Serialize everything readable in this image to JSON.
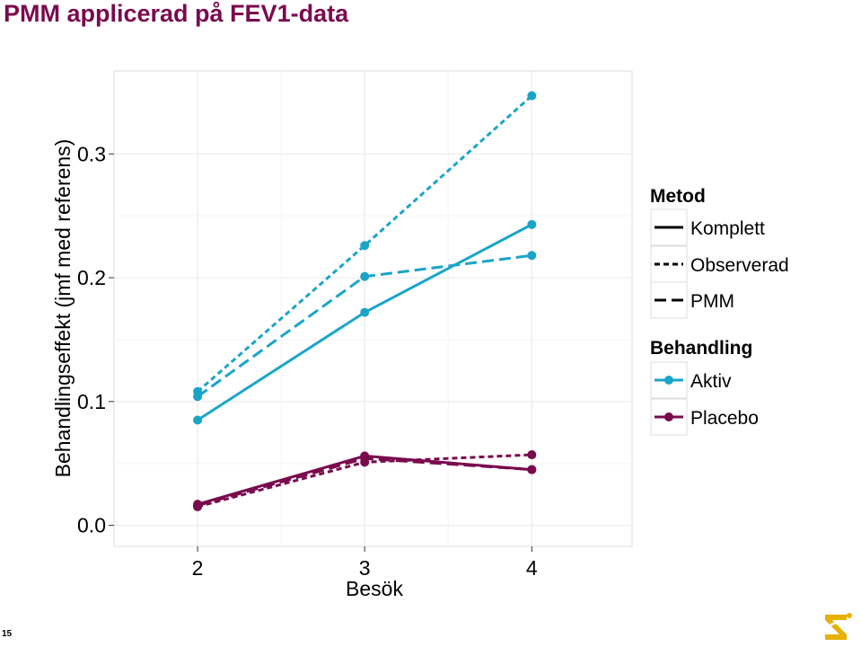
{
  "slide": {
    "title": "PMM applicerad på FEV1-data",
    "page_number": "15",
    "logo_icon": "company-logo-icon"
  },
  "colors": {
    "aktiv": "#1aa5c8",
    "placebo": "#7a0a4e",
    "panel_bg": "#ffffff",
    "grid": "#ebebeb",
    "title": "#7a0a4e"
  },
  "chart_data": {
    "type": "line",
    "xlabel": "Besök",
    "ylabel": "Behandlingseffekt (jmf med referens)",
    "x": [
      2,
      3,
      4
    ],
    "x_ticks": [
      "2",
      "3",
      "4"
    ],
    "y_ticks": [
      "0.0",
      "0.1",
      "0.2",
      "0.3"
    ],
    "y_tick_values": [
      0.0,
      0.1,
      0.2,
      0.3
    ],
    "xlim": [
      1.5,
      4.6
    ],
    "ylim": [
      -0.017,
      0.367
    ],
    "grid": true,
    "legend_position": "right",
    "legend": {
      "metod": {
        "title": "Metod",
        "items": [
          {
            "label": "Komplett",
            "dash": "solid"
          },
          {
            "label": "Observerad",
            "dash": "dotted"
          },
          {
            "label": "PMM",
            "dash": "dashed"
          }
        ]
      },
      "behandling": {
        "title": "Behandling",
        "items": [
          {
            "label": "Aktiv",
            "color": "#1aa5c8"
          },
          {
            "label": "Placebo",
            "color": "#7a0a4e"
          }
        ]
      }
    },
    "series": [
      {
        "behandling": "Aktiv",
        "metod": "Komplett",
        "values": [
          0.085,
          0.172,
          0.243
        ]
      },
      {
        "behandling": "Aktiv",
        "metod": "Observerad",
        "values": [
          0.108,
          0.226,
          0.347
        ]
      },
      {
        "behandling": "Aktiv",
        "metod": "PMM",
        "values": [
          0.104,
          0.201,
          0.218
        ]
      },
      {
        "behandling": "Placebo",
        "metod": "Komplett",
        "values": [
          0.017,
          0.056,
          0.045
        ]
      },
      {
        "behandling": "Placebo",
        "metod": "Observerad",
        "values": [
          0.015,
          0.051,
          0.057
        ]
      },
      {
        "behandling": "Placebo",
        "metod": "PMM",
        "values": [
          0.016,
          0.054,
          0.045
        ]
      }
    ]
  }
}
